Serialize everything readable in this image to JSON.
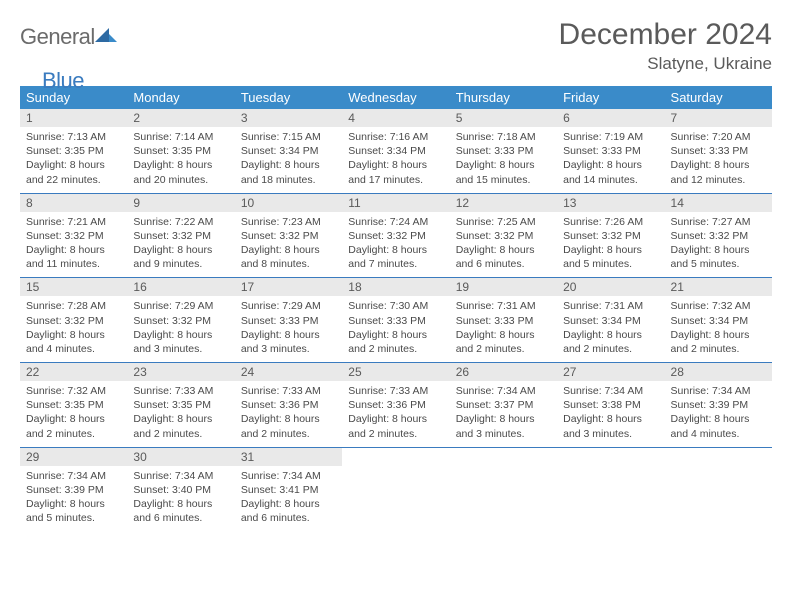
{
  "brand": {
    "part1": "General",
    "part2": "Blue"
  },
  "title": "December 2024",
  "location": "Slatyne, Ukraine",
  "colors": {
    "header_bg": "#3a8bc9",
    "header_text": "#ffffff",
    "accent_line": "#3a7bbf",
    "daynum_bg": "#e9e9e9",
    "text_muted": "#5a5a5a",
    "text_body": "#4a4a4a",
    "logo_gray": "#6b6b6b",
    "logo_blue": "#3a7bbf",
    "page_bg": "#ffffff"
  },
  "weekdays": [
    "Sunday",
    "Monday",
    "Tuesday",
    "Wednesday",
    "Thursday",
    "Friday",
    "Saturday"
  ],
  "weeks": [
    [
      {
        "n": "1",
        "sr": "Sunrise: 7:13 AM",
        "ss": "Sunset: 3:35 PM",
        "d1": "Daylight: 8 hours",
        "d2": "and 22 minutes."
      },
      {
        "n": "2",
        "sr": "Sunrise: 7:14 AM",
        "ss": "Sunset: 3:35 PM",
        "d1": "Daylight: 8 hours",
        "d2": "and 20 minutes."
      },
      {
        "n": "3",
        "sr": "Sunrise: 7:15 AM",
        "ss": "Sunset: 3:34 PM",
        "d1": "Daylight: 8 hours",
        "d2": "and 18 minutes."
      },
      {
        "n": "4",
        "sr": "Sunrise: 7:16 AM",
        "ss": "Sunset: 3:34 PM",
        "d1": "Daylight: 8 hours",
        "d2": "and 17 minutes."
      },
      {
        "n": "5",
        "sr": "Sunrise: 7:18 AM",
        "ss": "Sunset: 3:33 PM",
        "d1": "Daylight: 8 hours",
        "d2": "and 15 minutes."
      },
      {
        "n": "6",
        "sr": "Sunrise: 7:19 AM",
        "ss": "Sunset: 3:33 PM",
        "d1": "Daylight: 8 hours",
        "d2": "and 14 minutes."
      },
      {
        "n": "7",
        "sr": "Sunrise: 7:20 AM",
        "ss": "Sunset: 3:33 PM",
        "d1": "Daylight: 8 hours",
        "d2": "and 12 minutes."
      }
    ],
    [
      {
        "n": "8",
        "sr": "Sunrise: 7:21 AM",
        "ss": "Sunset: 3:32 PM",
        "d1": "Daylight: 8 hours",
        "d2": "and 11 minutes."
      },
      {
        "n": "9",
        "sr": "Sunrise: 7:22 AM",
        "ss": "Sunset: 3:32 PM",
        "d1": "Daylight: 8 hours",
        "d2": "and 9 minutes."
      },
      {
        "n": "10",
        "sr": "Sunrise: 7:23 AM",
        "ss": "Sunset: 3:32 PM",
        "d1": "Daylight: 8 hours",
        "d2": "and 8 minutes."
      },
      {
        "n": "11",
        "sr": "Sunrise: 7:24 AM",
        "ss": "Sunset: 3:32 PM",
        "d1": "Daylight: 8 hours",
        "d2": "and 7 minutes."
      },
      {
        "n": "12",
        "sr": "Sunrise: 7:25 AM",
        "ss": "Sunset: 3:32 PM",
        "d1": "Daylight: 8 hours",
        "d2": "and 6 minutes."
      },
      {
        "n": "13",
        "sr": "Sunrise: 7:26 AM",
        "ss": "Sunset: 3:32 PM",
        "d1": "Daylight: 8 hours",
        "d2": "and 5 minutes."
      },
      {
        "n": "14",
        "sr": "Sunrise: 7:27 AM",
        "ss": "Sunset: 3:32 PM",
        "d1": "Daylight: 8 hours",
        "d2": "and 5 minutes."
      }
    ],
    [
      {
        "n": "15",
        "sr": "Sunrise: 7:28 AM",
        "ss": "Sunset: 3:32 PM",
        "d1": "Daylight: 8 hours",
        "d2": "and 4 minutes."
      },
      {
        "n": "16",
        "sr": "Sunrise: 7:29 AM",
        "ss": "Sunset: 3:32 PM",
        "d1": "Daylight: 8 hours",
        "d2": "and 3 minutes."
      },
      {
        "n": "17",
        "sr": "Sunrise: 7:29 AM",
        "ss": "Sunset: 3:33 PM",
        "d1": "Daylight: 8 hours",
        "d2": "and 3 minutes."
      },
      {
        "n": "18",
        "sr": "Sunrise: 7:30 AM",
        "ss": "Sunset: 3:33 PM",
        "d1": "Daylight: 8 hours",
        "d2": "and 2 minutes."
      },
      {
        "n": "19",
        "sr": "Sunrise: 7:31 AM",
        "ss": "Sunset: 3:33 PM",
        "d1": "Daylight: 8 hours",
        "d2": "and 2 minutes."
      },
      {
        "n": "20",
        "sr": "Sunrise: 7:31 AM",
        "ss": "Sunset: 3:34 PM",
        "d1": "Daylight: 8 hours",
        "d2": "and 2 minutes."
      },
      {
        "n": "21",
        "sr": "Sunrise: 7:32 AM",
        "ss": "Sunset: 3:34 PM",
        "d1": "Daylight: 8 hours",
        "d2": "and 2 minutes."
      }
    ],
    [
      {
        "n": "22",
        "sr": "Sunrise: 7:32 AM",
        "ss": "Sunset: 3:35 PM",
        "d1": "Daylight: 8 hours",
        "d2": "and 2 minutes."
      },
      {
        "n": "23",
        "sr": "Sunrise: 7:33 AM",
        "ss": "Sunset: 3:35 PM",
        "d1": "Daylight: 8 hours",
        "d2": "and 2 minutes."
      },
      {
        "n": "24",
        "sr": "Sunrise: 7:33 AM",
        "ss": "Sunset: 3:36 PM",
        "d1": "Daylight: 8 hours",
        "d2": "and 2 minutes."
      },
      {
        "n": "25",
        "sr": "Sunrise: 7:33 AM",
        "ss": "Sunset: 3:36 PM",
        "d1": "Daylight: 8 hours",
        "d2": "and 2 minutes."
      },
      {
        "n": "26",
        "sr": "Sunrise: 7:34 AM",
        "ss": "Sunset: 3:37 PM",
        "d1": "Daylight: 8 hours",
        "d2": "and 3 minutes."
      },
      {
        "n": "27",
        "sr": "Sunrise: 7:34 AM",
        "ss": "Sunset: 3:38 PM",
        "d1": "Daylight: 8 hours",
        "d2": "and 3 minutes."
      },
      {
        "n": "28",
        "sr": "Sunrise: 7:34 AM",
        "ss": "Sunset: 3:39 PM",
        "d1": "Daylight: 8 hours",
        "d2": "and 4 minutes."
      }
    ],
    [
      {
        "n": "29",
        "sr": "Sunrise: 7:34 AM",
        "ss": "Sunset: 3:39 PM",
        "d1": "Daylight: 8 hours",
        "d2": "and 5 minutes."
      },
      {
        "n": "30",
        "sr": "Sunrise: 7:34 AM",
        "ss": "Sunset: 3:40 PM",
        "d1": "Daylight: 8 hours",
        "d2": "and 6 minutes."
      },
      {
        "n": "31",
        "sr": "Sunrise: 7:34 AM",
        "ss": "Sunset: 3:41 PM",
        "d1": "Daylight: 8 hours",
        "d2": "and 6 minutes."
      },
      null,
      null,
      null,
      null
    ]
  ]
}
